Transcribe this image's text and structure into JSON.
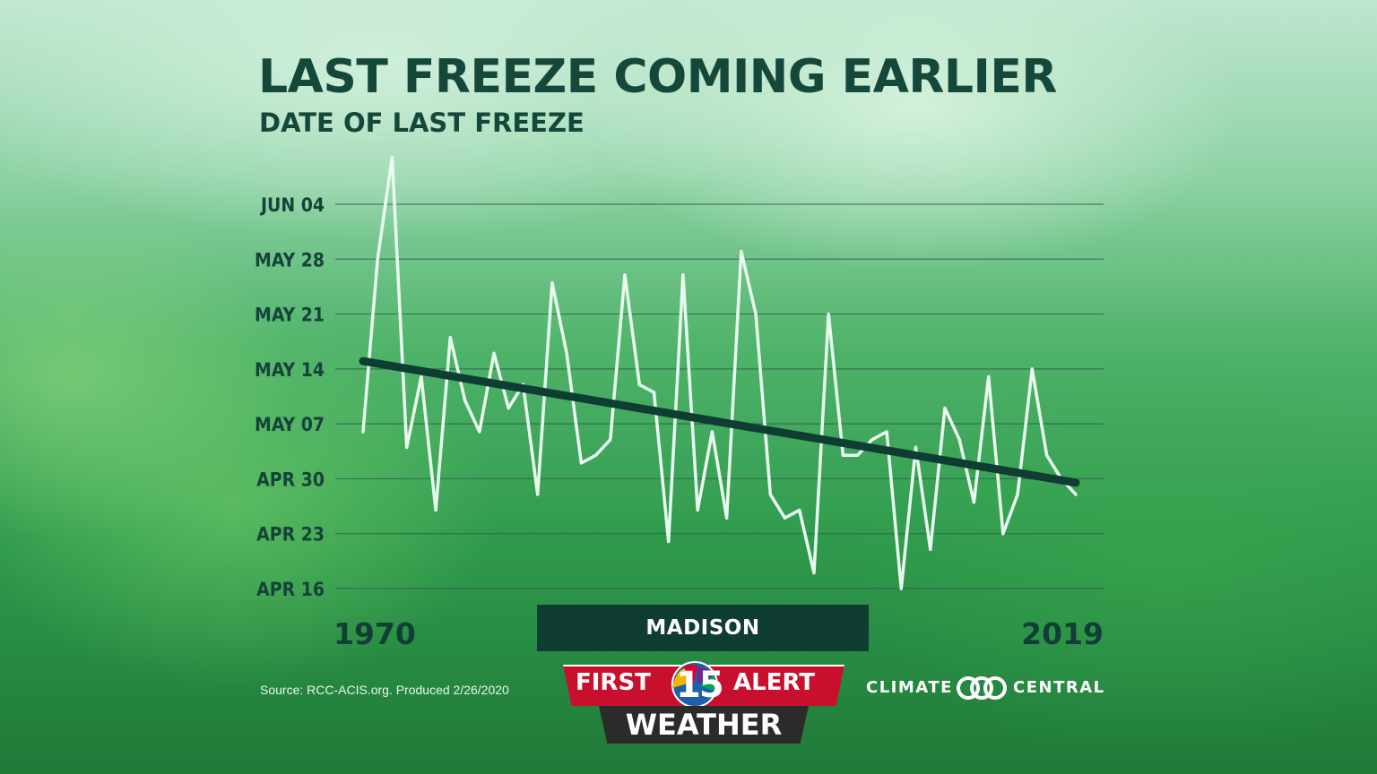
{
  "chart_data": {
    "type": "line",
    "title": "LAST FREEZE COMING EARLIER",
    "subtitle": "DATE OF LAST FREEZE",
    "xlabel": "",
    "ylabel": "",
    "x_tick_labels": [
      "1970",
      "2019"
    ],
    "xlim": [
      1970,
      2019
    ],
    "y_unit": "day of year",
    "ylim": [
      106,
      158
    ],
    "y_ticks": [
      {
        "label": "JUN 04",
        "value": 155
      },
      {
        "label": "MAY 28",
        "value": 148
      },
      {
        "label": "MAY 21",
        "value": 141
      },
      {
        "label": "MAY 14",
        "value": 134
      },
      {
        "label": "MAY 07",
        "value": 127
      },
      {
        "label": "APR 30",
        "value": 120
      },
      {
        "label": "APR 23",
        "value": 113
      },
      {
        "label": "APR 16",
        "value": 106
      }
    ],
    "grid": true,
    "series": [
      {
        "name": "Date of last freeze",
        "x": [
          1970,
          1971,
          1972,
          1973,
          1974,
          1975,
          1976,
          1977,
          1978,
          1979,
          1980,
          1981,
          1982,
          1983,
          1984,
          1985,
          1986,
          1987,
          1988,
          1989,
          1990,
          1991,
          1992,
          1993,
          1994,
          1995,
          1996,
          1997,
          1998,
          1999,
          2000,
          2001,
          2002,
          2003,
          2004,
          2005,
          2006,
          2007,
          2008,
          2009,
          2010,
          2011,
          2012,
          2013,
          2014,
          2015,
          2016,
          2017,
          2018,
          2019
        ],
        "values": [
          126,
          148,
          161,
          124,
          133,
          116,
          138,
          130,
          126,
          136,
          129,
          132,
          118,
          145,
          136,
          122,
          123,
          125,
          146,
          132,
          131,
          112,
          146,
          116,
          126,
          115,
          149,
          141,
          118,
          115,
          116,
          108,
          141,
          123,
          123,
          125,
          126,
          106,
          124,
          111,
          129,
          125,
          117,
          133,
          113,
          118,
          134,
          123,
          120,
          118
        ]
      },
      {
        "name": "Trend",
        "x": [
          1970,
          2019
        ],
        "values": [
          135,
          119.5
        ]
      }
    ],
    "location_label": "MADISON"
  },
  "footer": {
    "source": "Source: RCC-ACIS.org. Produced 2/26/2020",
    "logo_first": "FIRST",
    "logo_number": "15",
    "logo_alert": "ALERT",
    "logo_weather": "WEATHER",
    "cc_left": "CLIMATE",
    "cc_right": "CENTRAL"
  },
  "colors": {
    "title": "#14483a",
    "data_line": "#e8fbee",
    "trend_line": "#0f3d33",
    "grid": "#2f5f4f",
    "logo_red": "#c8102e"
  }
}
